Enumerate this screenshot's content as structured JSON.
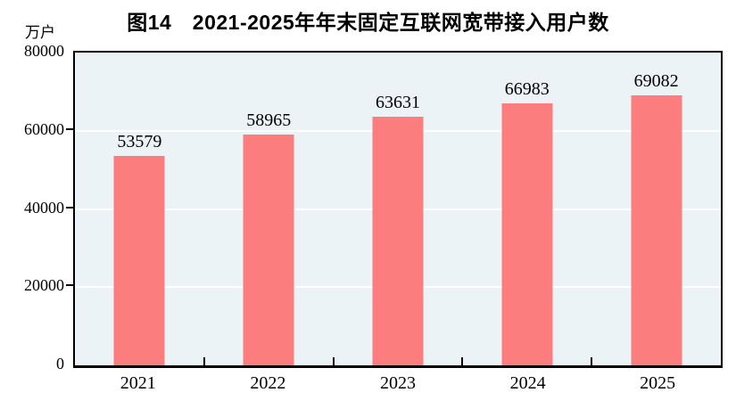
{
  "title": "图14　2021-2025年年末固定互联网宽带接入用户数",
  "unit_label": "万户",
  "colors": {
    "bar": "#fc7d7d",
    "plot_bg": "#ecf3f7",
    "gridline": "#ffffff",
    "axis": "#000000",
    "text": "#000000"
  },
  "chart_data": {
    "type": "bar",
    "title": "图14　2021-2025年年末固定互联网宽带接入用户数",
    "ylabel": "万户",
    "xlabel": "",
    "categories": [
      "2021",
      "2022",
      "2023",
      "2024",
      "2025"
    ],
    "values": [
      53579,
      58965,
      63631,
      66983,
      69082
    ],
    "ylim": [
      0,
      80000
    ],
    "yticks": [
      0,
      20000,
      40000,
      60000,
      80000
    ],
    "grid": true,
    "gridline_color": "#ffffff",
    "legend_position": "none",
    "bar_labels_shown": true
  }
}
